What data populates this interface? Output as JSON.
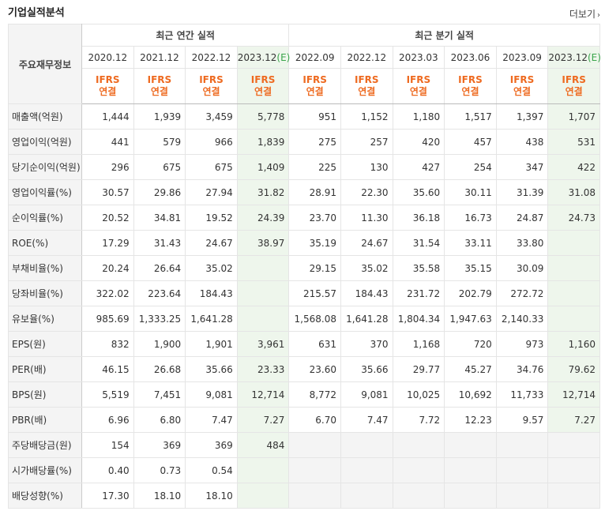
{
  "header": {
    "title": "기업실적분석",
    "more_label": "더보기"
  },
  "table": {
    "label_header": "주요재무정보",
    "groups": {
      "annual": "최근 연간 실적",
      "quarterly": "최근 분기 실적"
    },
    "annual_periods": [
      "2020.12",
      "2021.12",
      "2022.12",
      "2023.12"
    ],
    "annual_est_suffix": "(E)",
    "quarter_periods": [
      "2022.09",
      "2022.12",
      "2023.03",
      "2023.06",
      "2023.09",
      "2023.12"
    ],
    "quarter_est_suffix": "(E)",
    "ifrs_top": "IFRS",
    "ifrs_bottom": "연결",
    "rows": [
      {
        "label": "매출액(억원)",
        "values": [
          "1,444",
          "1,939",
          "3,459",
          "5,778",
          "951",
          "1,152",
          "1,180",
          "1,517",
          "1,397",
          "1,707"
        ]
      },
      {
        "label": "영업이익(억원)",
        "values": [
          "441",
          "579",
          "966",
          "1,839",
          "275",
          "257",
          "420",
          "457",
          "438",
          "531"
        ]
      },
      {
        "label": "당기순이익(억원)",
        "values": [
          "296",
          "675",
          "675",
          "1,409",
          "225",
          "130",
          "427",
          "254",
          "347",
          "422"
        ]
      },
      {
        "label": "영업이익률(%)",
        "values": [
          "30.57",
          "29.86",
          "27.94",
          "31.82",
          "28.91",
          "22.30",
          "35.60",
          "30.11",
          "31.39",
          "31.08"
        ]
      },
      {
        "label": "순이익률(%)",
        "values": [
          "20.52",
          "34.81",
          "19.52",
          "24.39",
          "23.70",
          "11.30",
          "36.18",
          "16.73",
          "24.87",
          "24.73"
        ]
      },
      {
        "label": "ROE(%)",
        "values": [
          "17.29",
          "31.43",
          "24.67",
          "38.97",
          "35.19",
          "24.67",
          "31.54",
          "33.11",
          "33.80",
          ""
        ]
      },
      {
        "label": "부채비율(%)",
        "values": [
          "20.24",
          "26.64",
          "35.02",
          "",
          "29.15",
          "35.02",
          "35.58",
          "35.15",
          "30.09",
          ""
        ]
      },
      {
        "label": "당좌비율(%)",
        "values": [
          "322.02",
          "223.64",
          "184.43",
          "",
          "215.57",
          "184.43",
          "231.72",
          "202.79",
          "272.72",
          ""
        ]
      },
      {
        "label": "유보율(%)",
        "values": [
          "985.69",
          "1,333.25",
          "1,641.28",
          "",
          "1,568.08",
          "1,641.28",
          "1,804.34",
          "1,947.63",
          "2,140.33",
          ""
        ]
      },
      {
        "label": "EPS(원)",
        "values": [
          "832",
          "1,900",
          "1,901",
          "3,961",
          "631",
          "370",
          "1,168",
          "720",
          "973",
          "1,160"
        ]
      },
      {
        "label": "PER(배)",
        "values": [
          "46.15",
          "26.68",
          "35.66",
          "23.33",
          "23.60",
          "35.66",
          "29.77",
          "45.27",
          "34.76",
          "79.62"
        ]
      },
      {
        "label": "BPS(원)",
        "values": [
          "5,519",
          "7,451",
          "9,081",
          "12,714",
          "8,772",
          "9,081",
          "10,025",
          "10,692",
          "11,733",
          "12,714"
        ]
      },
      {
        "label": "PBR(배)",
        "values": [
          "6.96",
          "6.80",
          "7.47",
          "7.27",
          "6.70",
          "7.47",
          "7.72",
          "12.23",
          "9.57",
          "7.27"
        ]
      },
      {
        "label": "주당배당금(원)",
        "values": [
          "154",
          "369",
          "369",
          "484",
          "",
          "",
          "",
          "",
          "",
          ""
        ]
      },
      {
        "label": "시가배당률(%)",
        "values": [
          "0.40",
          "0.73",
          "0.54",
          "",
          "",
          "",
          "",
          "",
          "",
          ""
        ]
      },
      {
        "label": "배당성향(%)",
        "values": [
          "17.30",
          "18.10",
          "18.10",
          "",
          "",
          "",
          "",
          "",
          "",
          ""
        ]
      }
    ]
  }
}
